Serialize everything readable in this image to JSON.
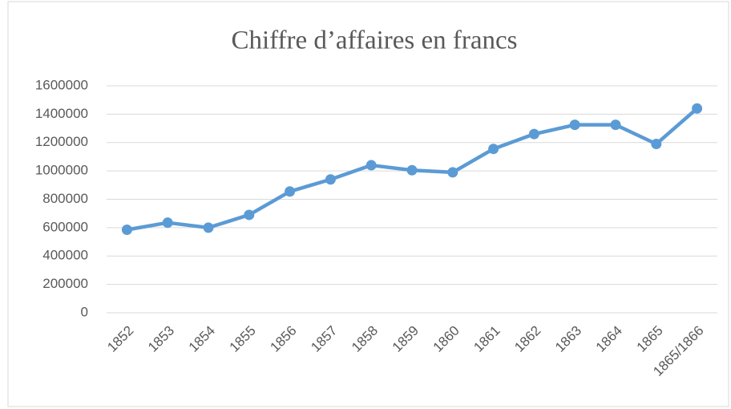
{
  "chart_data": {
    "type": "line",
    "title": "Chiffre d’affaires en francs",
    "categories": [
      "1852",
      "1853",
      "1854",
      "1855",
      "1856",
      "1857",
      "1858",
      "1859",
      "1860",
      "1861",
      "1862",
      "1863",
      "1864",
      "1865",
      "1865/1866"
    ],
    "values": [
      585000,
      635000,
      600000,
      690000,
      855000,
      940000,
      1040000,
      1005000,
      990000,
      1155000,
      1260000,
      1325000,
      1325000,
      1190000,
      1440000
    ],
    "color": "#5b9bd5",
    "ylim": [
      0,
      1600000
    ],
    "yticks": [
      0,
      200000,
      400000,
      600000,
      800000,
      1000000,
      1200000,
      1400000,
      1600000
    ],
    "grid": true
  }
}
